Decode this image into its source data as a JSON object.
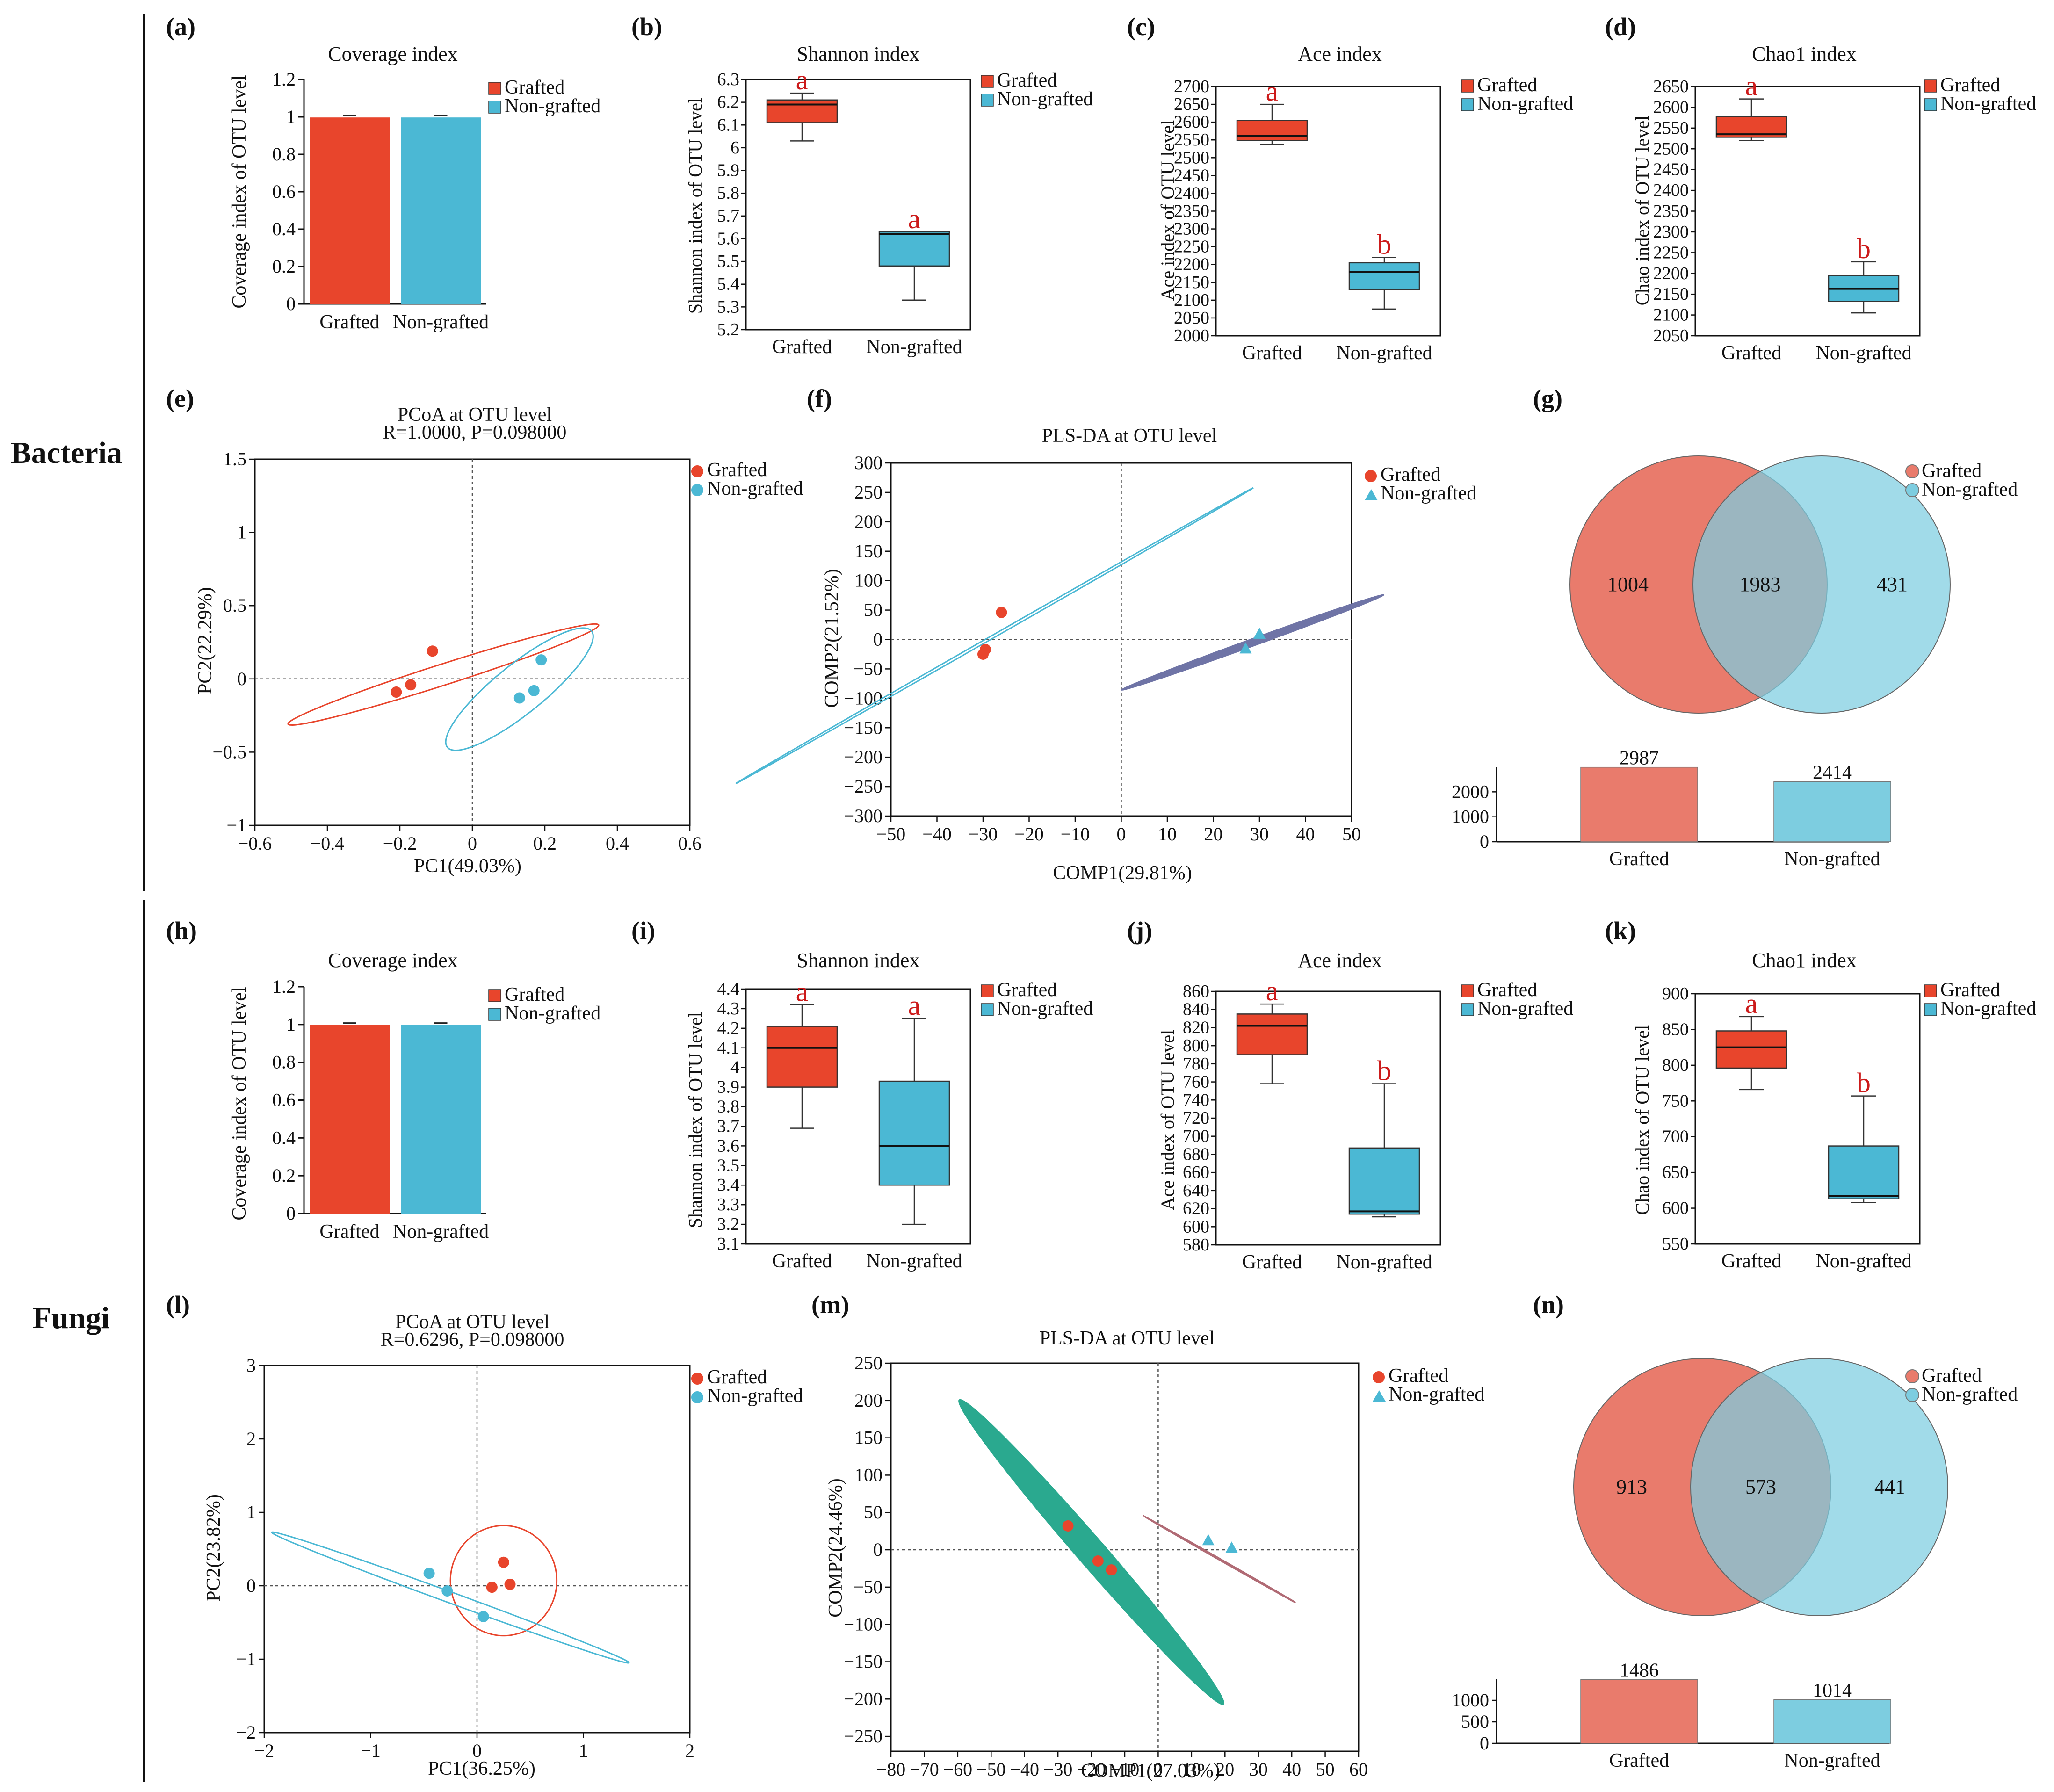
{
  "figure": {
    "section_labels": {
      "bacteria": "Bacteria",
      "fungi": "Fungi"
    },
    "colors": {
      "grafted": "#e8452c",
      "non_grafted": "#4bb8d4",
      "venn_grafted": "#e97b6c",
      "venn_non_grafted": "#7dcde0",
      "pls_fungi_fill": "#2aa98f",
      "pls_bact_non": "#6f74a6",
      "sig_letter": "#cc1a1a"
    }
  },
  "chart_data": [
    {
      "id": "a",
      "panel_label": "(a)",
      "type": "bar",
      "title": "Coverage index",
      "ylabel": "Coverage index of OTU level",
      "ylim": [
        0,
        1.2
      ],
      "yticks": [
        0,
        0.2,
        0.4,
        0.6,
        0.8,
        1,
        1.2
      ],
      "categories": [
        "Grafted",
        "Non-grafted"
      ],
      "values": [
        0.997,
        0.997
      ],
      "legend": [
        "Grafted",
        "Non-grafted"
      ]
    },
    {
      "id": "b",
      "panel_label": "(b)",
      "type": "box",
      "title": "Shannon index",
      "ylabel": "Shannon index of OTU level",
      "ylim": [
        5.2,
        6.3
      ],
      "yticks": [
        5.2,
        5.3,
        5.4,
        5.5,
        5.6,
        5.7,
        5.8,
        5.9,
        6,
        6.1,
        6.2,
        6.3
      ],
      "categories": [
        "Grafted",
        "Non-grafted"
      ],
      "boxes": [
        {
          "min": 6.03,
          "q1": 6.11,
          "median": 6.19,
          "q3": 6.21,
          "max": 6.24
        },
        {
          "min": 5.33,
          "q1": 5.48,
          "median": 5.62,
          "q3": 5.63,
          "max": 5.63
        }
      ],
      "letters": [
        "a",
        "a"
      ],
      "legend": [
        "Grafted",
        "Non-grafted"
      ]
    },
    {
      "id": "c",
      "panel_label": "(c)",
      "type": "box",
      "title": "Ace index",
      "ylabel": "Ace index of OTU level",
      "ylim": [
        2000,
        2700
      ],
      "yticks": [
        2000,
        2050,
        2100,
        2150,
        2200,
        2250,
        2300,
        2350,
        2400,
        2450,
        2500,
        2550,
        2600,
        2650,
        2700
      ],
      "categories": [
        "Grafted",
        "Non-grafted"
      ],
      "boxes": [
        {
          "min": 2537,
          "q1": 2548,
          "median": 2562,
          "q3": 2605,
          "max": 2650
        },
        {
          "min": 2075,
          "q1": 2130,
          "median": 2180,
          "q3": 2205,
          "max": 2220
        }
      ],
      "letters": [
        "a",
        "b"
      ],
      "legend": [
        "Grafted",
        "Non-grafted"
      ]
    },
    {
      "id": "d",
      "panel_label": "(d)",
      "type": "box",
      "title": "Chao1 index",
      "ylabel": "Chao index of OTU level",
      "ylim": [
        2050,
        2650
      ],
      "yticks": [
        2050,
        2100,
        2150,
        2200,
        2250,
        2300,
        2350,
        2400,
        2450,
        2500,
        2550,
        2600,
        2650
      ],
      "categories": [
        "Grafted",
        "Non-grafted"
      ],
      "boxes": [
        {
          "min": 2520,
          "q1": 2528,
          "median": 2535,
          "q3": 2578,
          "max": 2620
        },
        {
          "min": 2105,
          "q1": 2133,
          "median": 2163,
          "q3": 2195,
          "max": 2228
        }
      ],
      "letters": [
        "a",
        "b"
      ],
      "legend": [
        "Grafted",
        "Non-grafted"
      ]
    },
    {
      "id": "e",
      "panel_label": "(e)",
      "type": "scatter",
      "title": "PCoA at OTU level",
      "subtitle": "R=1.0000, P=0.098000",
      "xlabel": "PC1(49.03%)",
      "ylabel": "PC2(22.29%)",
      "xlim": [
        -0.6,
        0.6
      ],
      "ylim": [
        -1,
        1.5
      ],
      "xticks": [
        -0.6,
        -0.4,
        -0.2,
        0,
        0.2,
        0.4,
        0.6
      ],
      "yticks": [
        -1,
        -0.5,
        0,
        0.5,
        1,
        1.5
      ],
      "xtick_labels": [
        "−0.6",
        "−0.4",
        "−0.2",
        "0",
        "0.2",
        "0.4",
        "0.6"
      ],
      "ytick_labels": [
        "−1",
        "−0.5",
        "0",
        "0.5",
        "1",
        "1.5"
      ],
      "series": [
        {
          "name": "Grafted",
          "marker": "circle",
          "points": [
            [
              -0.21,
              -0.09
            ],
            [
              -0.17,
              -0.04
            ],
            [
              -0.11,
              0.19
            ]
          ]
        },
        {
          "name": "Non-grafted",
          "marker": "circle",
          "points": [
            [
              0.13,
              -0.13
            ],
            [
              0.17,
              -0.08
            ],
            [
              0.19,
              0.13
            ]
          ]
        }
      ],
      "ellipses": [
        {
          "series": "Grafted",
          "cx": -0.08,
          "cy": 0.03,
          "angle_deg": 38.7,
          "a": 0.547,
          "b": 0.059,
          "style": "outline"
        },
        {
          "series": "Non-grafted",
          "cx": 0.13,
          "cy": -0.07,
          "angle_deg": 66.1,
          "a": 0.455,
          "b": 0.094,
          "style": "outline"
        }
      ],
      "legend": [
        "Grafted",
        "Non-grafted"
      ]
    },
    {
      "id": "f",
      "panel_label": "(f)",
      "type": "scatter",
      "title": "PLS-DA at OTU level",
      "xlabel": "COMP1(29.81%)",
      "ylabel": "COMP2(21.52%)",
      "xlim": [
        -50,
        50
      ],
      "ylim": [
        -300,
        300
      ],
      "xticks": [
        -50,
        -40,
        -30,
        -20,
        -10,
        0,
        10,
        20,
        30,
        40,
        50
      ],
      "yticks": [
        -300,
        -250,
        -200,
        -150,
        -100,
        -50,
        0,
        50,
        100,
        150,
        200,
        250,
        300
      ],
      "xtick_labels": [
        "−50",
        "−40",
        "−30",
        "−20",
        "−10",
        "0",
        "10",
        "20",
        "30",
        "40",
        "50"
      ],
      "ytick_labels": [
        "−300",
        "−250",
        "−200",
        "−150",
        "−100",
        "−50",
        "0",
        "50",
        "100",
        "150",
        "200",
        "250",
        "300"
      ],
      "series": [
        {
          "name": "Grafted",
          "marker": "circle",
          "points": [
            [
              -30,
              -25
            ],
            [
              -29.5,
              -17
            ],
            [
              -26,
              46
            ]
          ]
        },
        {
          "name": "Non-grafted",
          "marker": "triangle",
          "points": [
            [
              27,
              -15
            ],
            [
              30,
              10
            ]
          ]
        }
      ],
      "ellipses": [
        {
          "series": "Grafted",
          "cx": -27.5,
          "cy": 6.5,
          "angle_deg": 77.4,
          "a": 257.5,
          "b": 0.6,
          "style": "thin-line",
          "color": "#4bb8d4"
        },
        {
          "series": "Non-grafted",
          "cx": 28.5,
          "cy": -5,
          "angle_deg": 70.7,
          "a": 86,
          "b": 2.2,
          "style": "filled",
          "color": "#6f74a6"
        }
      ],
      "legend": [
        "Grafted",
        "Non-grafted"
      ]
    },
    {
      "id": "g",
      "panel_label": "(g)",
      "type": "venn",
      "sets": [
        "Grafted",
        "Non-grafted"
      ],
      "only_a": 1004,
      "intersection": 1983,
      "only_b": 431,
      "totals": [
        2987,
        2414
      ],
      "bar_categories": [
        "Grafted",
        "Non-grafted"
      ],
      "bar_ylim": [
        0,
        3000
      ],
      "bar_yticks": [
        0,
        1000,
        2000
      ],
      "legend": [
        "Grafted",
        "Non-grafted"
      ]
    },
    {
      "id": "h",
      "panel_label": "(h)",
      "type": "bar",
      "title": "Coverage index",
      "ylabel": "Coverage index of OTU level",
      "ylim": [
        0,
        1.2
      ],
      "yticks": [
        0,
        0.2,
        0.4,
        0.6,
        0.8,
        1,
        1.2
      ],
      "categories": [
        "Grafted",
        "Non-grafted"
      ],
      "values": [
        0.998,
        0.998
      ],
      "legend": [
        "Grafted",
        "Non-grafted"
      ]
    },
    {
      "id": "i",
      "panel_label": "(i)",
      "type": "box",
      "title": "Shannon index",
      "ylabel": "Shannon index of OTU level",
      "ylim": [
        3.1,
        4.4
      ],
      "yticks": [
        3.1,
        3.2,
        3.3,
        3.4,
        3.5,
        3.6,
        3.7,
        3.8,
        3.9,
        4,
        4.1,
        4.2,
        4.3,
        4.4
      ],
      "categories": [
        "Grafted",
        "Non-grafted"
      ],
      "boxes": [
        {
          "min": 3.69,
          "q1": 3.9,
          "median": 4.1,
          "q3": 4.21,
          "max": 4.32
        },
        {
          "min": 3.2,
          "q1": 3.4,
          "median": 3.6,
          "q3": 3.93,
          "max": 4.25
        }
      ],
      "letters": [
        "a",
        "a"
      ],
      "legend": [
        "Grafted",
        "Non-grafted"
      ]
    },
    {
      "id": "j",
      "panel_label": "(j)",
      "type": "box",
      "title": "Ace index",
      "ylabel": "Ace index of OTU level",
      "ylim": [
        580,
        860
      ],
      "yticks": [
        580,
        600,
        620,
        640,
        660,
        680,
        700,
        720,
        740,
        760,
        780,
        800,
        820,
        840,
        860
      ],
      "categories": [
        "Grafted",
        "Non-grafted"
      ],
      "boxes": [
        {
          "min": 758,
          "q1": 790,
          "median": 822,
          "q3": 835,
          "max": 846
        },
        {
          "min": 611,
          "q1": 614,
          "median": 617,
          "q3": 687,
          "max": 758
        }
      ],
      "letters": [
        "a",
        "b"
      ],
      "legend": [
        "Grafted",
        "Non-grafted"
      ]
    },
    {
      "id": "k",
      "panel_label": "(k)",
      "type": "box",
      "title": "Chao1 index",
      "ylabel": "Chao index of OTU level",
      "ylim": [
        550,
        900
      ],
      "yticks": [
        550,
        600,
        650,
        700,
        750,
        800,
        850,
        900
      ],
      "categories": [
        "Grafted",
        "Non-grafted"
      ],
      "boxes": [
        {
          "min": 766,
          "q1": 796,
          "median": 825,
          "q3": 848,
          "max": 868
        },
        {
          "min": 608,
          "q1": 613,
          "median": 617,
          "q3": 687,
          "max": 757
        }
      ],
      "letters": [
        "a",
        "b"
      ],
      "legend": [
        "Grafted",
        "Non-grafted"
      ]
    },
    {
      "id": "l",
      "panel_label": "(l)",
      "type": "scatter",
      "title": "PCoA at OTU level",
      "subtitle": "R=0.6296, P=0.098000",
      "xlabel": "PC1(36.25%)",
      "ylabel": "PC2(23.82%)",
      "xlim": [
        -2,
        2
      ],
      "ylim": [
        -2,
        3
      ],
      "xticks": [
        -2,
        -1,
        0,
        1,
        2
      ],
      "yticks": [
        -2,
        -1,
        0,
        1,
        2,
        3
      ],
      "xtick_labels": [
        "−2",
        "−1",
        "0",
        "1",
        "2"
      ],
      "ytick_labels": [
        "−2",
        "−1",
        "0",
        "1",
        "2",
        "3"
      ],
      "series": [
        {
          "name": "Grafted",
          "marker": "circle",
          "points": [
            [
              0.14,
              -0.02
            ],
            [
              0.25,
              0.32
            ],
            [
              0.31,
              0.02
            ]
          ]
        },
        {
          "name": "Non-grafted",
          "marker": "circle",
          "points": [
            [
              -0.45,
              0.17
            ],
            [
              -0.28,
              -0.07
            ],
            [
              0.06,
              -0.42
            ]
          ]
        }
      ],
      "ellipses": [
        {
          "series": "Grafted",
          "cx": 0.25,
          "cy": 0.07,
          "angle_deg": -90,
          "a": 0.75,
          "b": 0.5,
          "style": "outline"
        },
        {
          "series": "Non-grafted",
          "cx": -0.25,
          "cy": -0.16,
          "angle_deg": -27.9,
          "a": 1.9,
          "b": 0.07,
          "style": "outline"
        }
      ],
      "legend": [
        "Grafted",
        "Non-grafted"
      ]
    },
    {
      "id": "m",
      "panel_label": "(m)",
      "type": "scatter",
      "title": "PLS-DA at OTU level",
      "xlabel": "COMP1(27.03%)",
      "ylabel": "COMP2(24.46%)",
      "xlim": [
        -80,
        60
      ],
      "ylim": [
        -270,
        250
      ],
      "xticks": [
        -80,
        -70,
        -60,
        -50,
        -40,
        -30,
        -20,
        -10,
        0,
        10,
        20,
        30,
        40,
        50,
        60
      ],
      "yticks": [
        -250,
        -200,
        -150,
        -100,
        -50,
        0,
        50,
        100,
        150,
        200,
        250
      ],
      "xtick_labels": [
        "−80",
        "−70",
        "−60",
        "−50",
        "−40",
        "−30",
        "−20",
        "−10",
        "0",
        "10",
        "20",
        "30",
        "40",
        "50",
        "60"
      ],
      "ytick_labels": [
        "−250",
        "−200",
        "−150",
        "−100",
        "−50",
        "0",
        "50",
        "100",
        "150",
        "200",
        "250"
      ],
      "series": [
        {
          "name": "Grafted",
          "marker": "circle",
          "points": [
            [
              -27,
              32
            ],
            [
              -18,
              -15
            ],
            [
              -14,
              -27
            ]
          ]
        },
        {
          "name": "Non-grafted",
          "marker": "triangle",
          "points": [
            [
              15,
              13
            ],
            [
              22,
              3
            ]
          ]
        }
      ],
      "ellipses": [
        {
          "series": "Grafted",
          "cx": -20,
          "cy": -3,
          "angle_deg": -79.1,
          "a": 208,
          "b": 5.4,
          "style": "filled",
          "color": "#2aa98f"
        },
        {
          "series": "Non-grafted",
          "cx": 18.5,
          "cy": -13,
          "angle_deg": -68.6,
          "a": 62,
          "b": 0.4,
          "style": "thin-line",
          "color": "#b06a74"
        }
      ],
      "legend": [
        "Grafted",
        "Non-grafted"
      ]
    },
    {
      "id": "n",
      "panel_label": "(n)",
      "type": "venn",
      "sets": [
        "Grafted",
        "Non-grafted"
      ],
      "only_a": 913,
      "intersection": 573,
      "only_b": 441,
      "totals": [
        1486,
        1014
      ],
      "bar_categories": [
        "Grafted",
        "Non-grafted"
      ],
      "bar_ylim": [
        0,
        1500
      ],
      "bar_yticks": [
        0,
        500,
        1000
      ],
      "legend": [
        "Grafted",
        "Non-grafted"
      ]
    }
  ]
}
